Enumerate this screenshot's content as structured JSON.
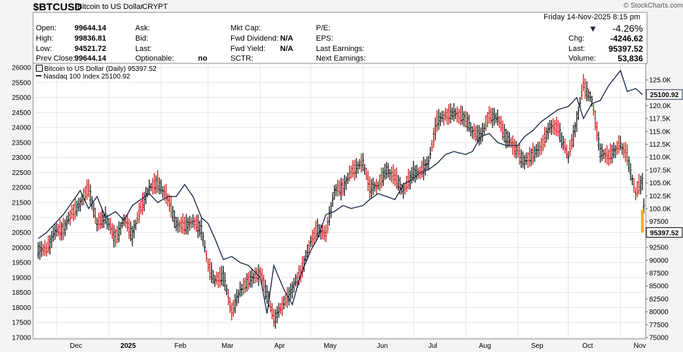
{
  "header": {
    "symbol": "$BTCUSD",
    "description": "Bitcoin to US Dollar",
    "exchange": "CRYPT",
    "brand": "© StockCharts.com",
    "datetime": "Friday  14-Nov-2025  8:15 pm",
    "change_pct": "-4.26%",
    "fields": [
      {
        "label": "Open:",
        "value": "99644.14"
      },
      {
        "label": "High:",
        "value": "99836.81"
      },
      {
        "label": "Low:",
        "value": "94521.72"
      },
      {
        "label": "Prev Close:",
        "value": "99644.14"
      },
      {
        "label": "Ask:",
        "value": ""
      },
      {
        "label": "Bid:",
        "value": ""
      },
      {
        "label": "Last:",
        "value": ""
      },
      {
        "label": "Optionable:",
        "value": "no"
      },
      {
        "label": "Mkt Cap:",
        "value": ""
      },
      {
        "label": "Fwd Dividend:",
        "value": "N/A"
      },
      {
        "label": "Fwd Yield:",
        "value": "N/A"
      },
      {
        "label": "SCTR:",
        "value": ""
      },
      {
        "label": "P/E:",
        "value": ""
      },
      {
        "label": "EPS:",
        "value": ""
      },
      {
        "label": "Last Earnings:",
        "value": ""
      },
      {
        "label": "Next Earnings:",
        "value": ""
      },
      {
        "label": "Chg:",
        "value": "-4246.62"
      },
      {
        "label": "Last:",
        "value": "95397.52"
      },
      {
        "label": "Volume:",
        "value": "53,836"
      }
    ]
  },
  "chart_data": {
    "type": "line",
    "legend": [
      "Bitcoin to US Dollar (Daily) 95397.52",
      "Nasdaq 100 Index 25100.92"
    ],
    "x_ticks": [
      "Dec",
      "2025",
      "Feb",
      "Mar",
      "Apr",
      "May",
      "Jun",
      "Jul",
      "Aug",
      "Sep",
      "Oct",
      "Nov"
    ],
    "left_axis": {
      "ticks": [
        "26000",
        "25500",
        "25000",
        "24500",
        "24000",
        "23500",
        "23000",
        "22500",
        "22000",
        "21500",
        "21000",
        "20500",
        "20000",
        "19500",
        "19000",
        "18500",
        "18000",
        "17500",
        "17000"
      ],
      "range": [
        17000,
        26000
      ]
    },
    "right_axis": {
      "ticks": [
        "125.0K",
        "122.5K",
        "120.0K",
        "117.5K",
        "115.0K",
        "112.5K",
        "110.0K",
        "107.5K",
        "105.0K",
        "102.5K",
        "100.0K",
        "97500",
        "95000",
        "92500",
        "90000",
        "87500",
        "85000",
        "82500",
        "80000",
        "77500",
        "75000"
      ],
      "range": [
        75000,
        125000
      ]
    },
    "last_labels": {
      "nasdaq": "25100.92",
      "btc": "95397.52"
    },
    "series": [
      {
        "name": "Bitcoin to US Dollar (Daily)",
        "axis": "right",
        "color": "#000000",
        "down_color": "#cc0000",
        "x": [
          "Nov 20",
          "Nov 25",
          "Nov 30",
          "Dec 5",
          "Dec 10",
          "Dec 15",
          "Dec 20",
          "Dec 25",
          "Dec 30",
          "Jan 5",
          "Jan 10",
          "Jan 15",
          "Jan 20",
          "Jan 25",
          "Jan 30",
          "Feb 5",
          "Feb 10",
          "Feb 15",
          "Feb 20",
          "Feb 25",
          "Mar 1",
          "Mar 5",
          "Mar 10",
          "Mar 15",
          "Mar 20",
          "Mar 25",
          "Apr 1",
          "Apr 5",
          "Apr 9",
          "Apr 15",
          "Apr 20",
          "Apr 25",
          "May 1",
          "May 5",
          "May 10",
          "May 15",
          "May 20",
          "May 25",
          "Jun 1",
          "Jun 5",
          "Jun 10",
          "Jun 15",
          "Jun 20",
          "Jun 25",
          "Jul 1",
          "Jul 5",
          "Jul 10",
          "Jul 15",
          "Jul 20",
          "Jul 25",
          "Aug 1",
          "Aug 5",
          "Aug 10",
          "Aug 15",
          "Aug 20",
          "Aug 25",
          "Sep 1",
          "Sep 5",
          "Sep 10",
          "Sep 15",
          "Sep 20",
          "Sep 25",
          "Oct 1",
          "Oct 6",
          "Oct 10",
          "Oct 15",
          "Oct 20",
          "Oct 25",
          "Nov 1",
          "Nov 5",
          "Nov 10",
          "Nov 14"
        ],
        "values": [
          92000,
          95500,
          96000,
          99000,
          101000,
          104000,
          97000,
          98500,
          94000,
          98000,
          95000,
          100000,
          104000,
          105000,
          102000,
          97000,
          96500,
          97500,
          96000,
          89000,
          86000,
          87000,
          80000,
          84000,
          86000,
          87500,
          83500,
          78500,
          81500,
          84500,
          87500,
          93500,
          96000,
          95000,
          103500,
          104000,
          107000,
          109000,
          104000,
          104500,
          107500,
          106000,
          103500,
          107000,
          107000,
          109000,
          117000,
          118000,
          118500,
          117500,
          115000,
          114000,
          118000,
          117500,
          114000,
          111000,
          109000,
          110500,
          112000,
          116000,
          115500,
          110000,
          117000,
          124000,
          121000,
          111000,
          110000,
          112500,
          110000,
          103000,
          105500,
          95397.52
        ]
      },
      {
        "name": "Nasdaq 100 Index",
        "axis": "left",
        "color": "#1c2b4a",
        "x": [
          "Nov 20",
          "Nov 25",
          "Nov 30",
          "Dec 5",
          "Dec 10",
          "Dec 15",
          "Dec 20",
          "Dec 25",
          "Dec 30",
          "Jan 5",
          "Jan 10",
          "Jan 15",
          "Jan 20",
          "Jan 25",
          "Jan 30",
          "Feb 5",
          "Feb 10",
          "Feb 15",
          "Feb 20",
          "Feb 25",
          "Mar 1",
          "Mar 5",
          "Mar 10",
          "Mar 15",
          "Mar 20",
          "Mar 25",
          "Apr 1",
          "Apr 5",
          "Apr 9",
          "Apr 15",
          "Apr 20",
          "Apr 25",
          "May 1",
          "May 5",
          "May 10",
          "May 15",
          "May 20",
          "May 25",
          "Jun 1",
          "Jun 5",
          "Jun 10",
          "Jun 15",
          "Jun 20",
          "Jun 25",
          "Jul 1",
          "Jul 5",
          "Jul 10",
          "Jul 15",
          "Jul 20",
          "Jul 25",
          "Aug 1",
          "Aug 5",
          "Aug 10",
          "Aug 15",
          "Aug 20",
          "Aug 25",
          "Sep 1",
          "Sep 5",
          "Sep 10",
          "Sep 15",
          "Sep 20",
          "Sep 25",
          "Oct 1",
          "Oct 6",
          "Oct 10",
          "Oct 15",
          "Oct 20",
          "Oct 25",
          "Nov 1",
          "Nov 5",
          "Nov 10",
          "Nov 14"
        ],
        "values": [
          20300,
          20500,
          20800,
          21100,
          21500,
          21900,
          21300,
          21700,
          21000,
          21200,
          20900,
          21400,
          21600,
          21800,
          21500,
          21700,
          21700,
          22100,
          21700,
          21000,
          20800,
          20300,
          19600,
          19700,
          19500,
          19400,
          19000,
          17800,
          19400,
          18600,
          18100,
          19100,
          19900,
          20300,
          21100,
          21200,
          21400,
          21300,
          21400,
          21600,
          21800,
          21700,
          21600,
          22100,
          22300,
          22500,
          22600,
          22800,
          23100,
          23200,
          23100,
          23200,
          23700,
          23800,
          23500,
          23400,
          23400,
          23700,
          23900,
          24200,
          24400,
          24600,
          24700,
          25000,
          24300,
          24800,
          24900,
          25400,
          25900,
          25200,
          25300,
          25100.92
        ]
      }
    ]
  }
}
